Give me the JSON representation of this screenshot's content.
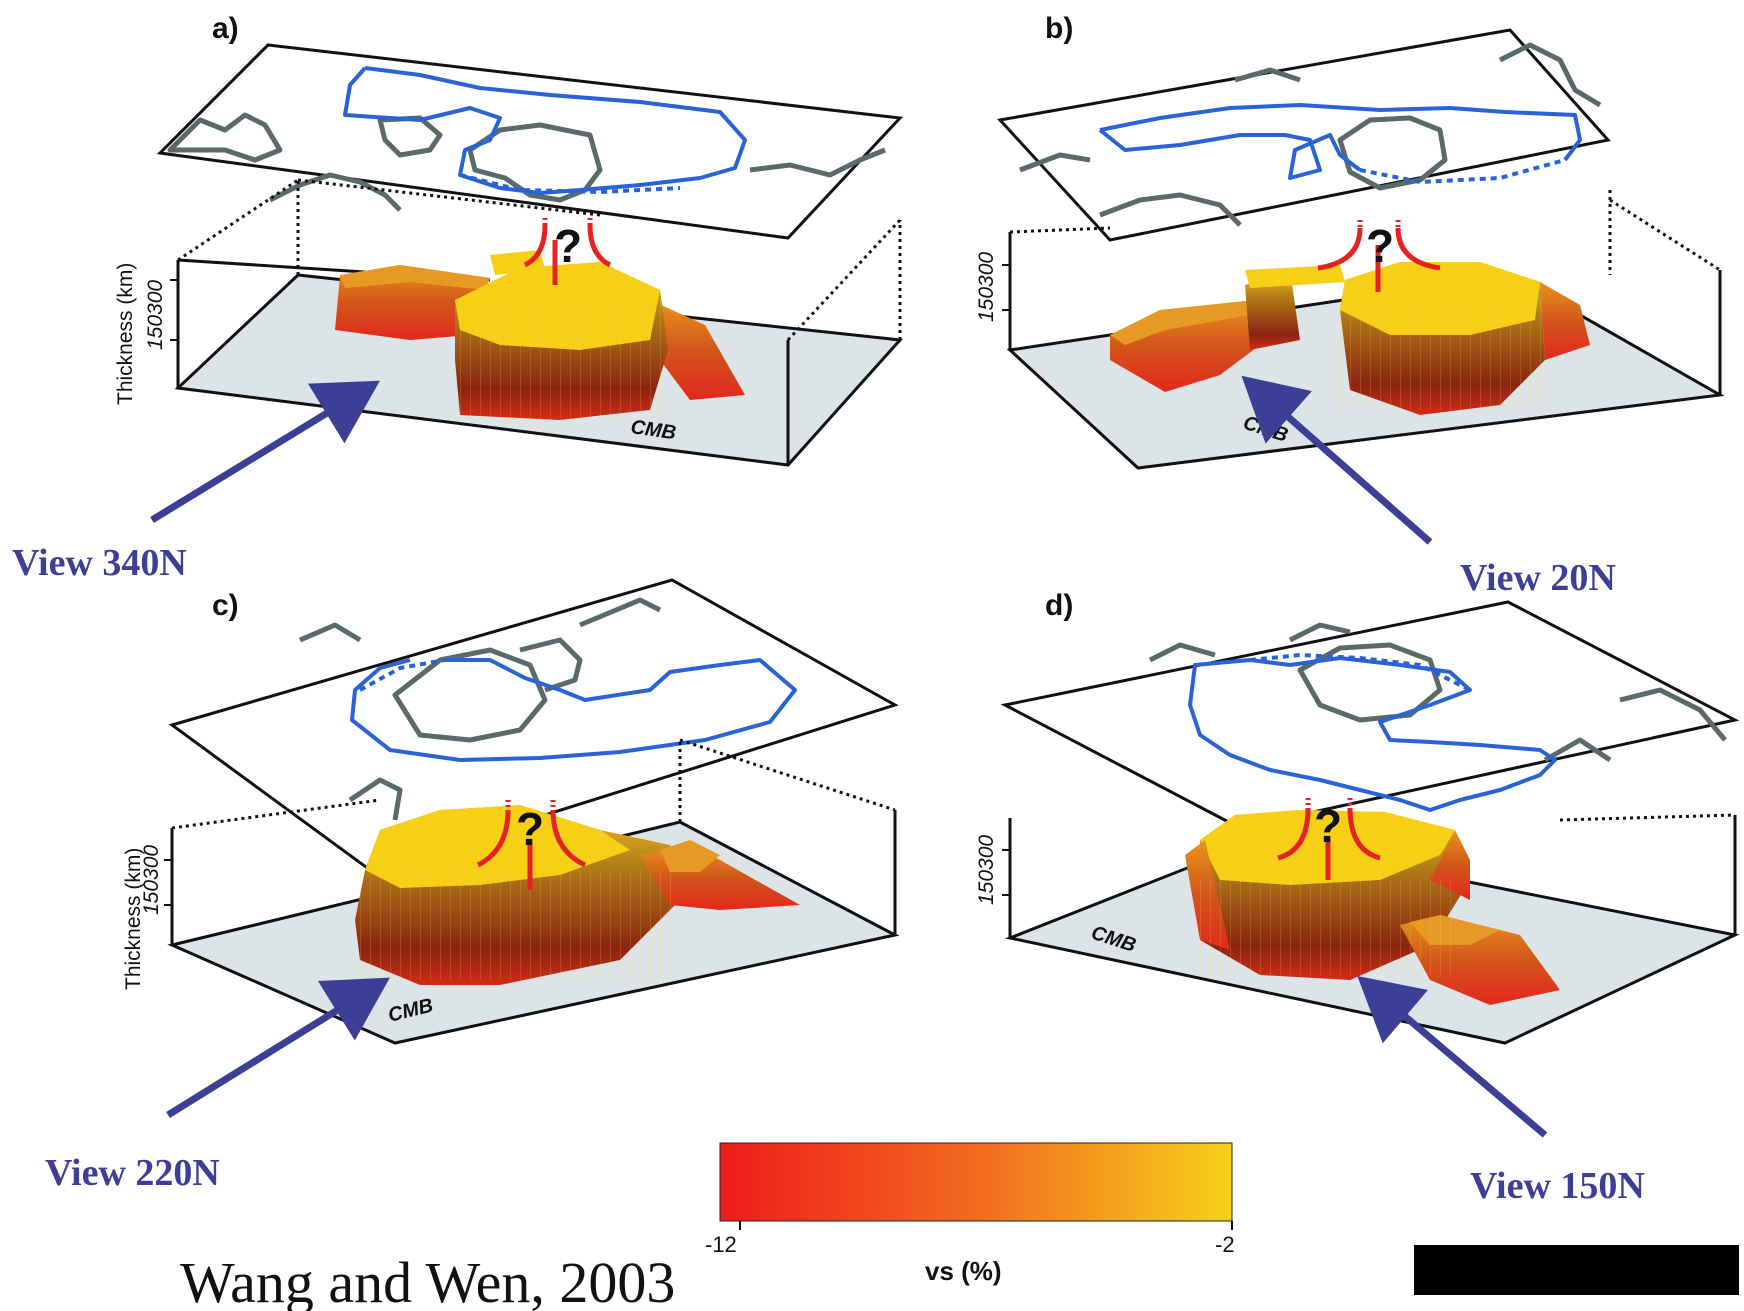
{
  "panels": [
    {
      "label": "a)",
      "view": "View 340N",
      "cmb": "CMB",
      "axis_label": "Thickness (km)",
      "ticks": "150300"
    },
    {
      "label": "b)",
      "view": "View 20N",
      "cmb": "CMB",
      "axis_label": "",
      "ticks": "150300"
    },
    {
      "label": "c)",
      "view": "View 220N",
      "cmb": "CMB",
      "axis_label": "Thickness (km)",
      "ticks": "150300"
    },
    {
      "label": "d)",
      "view": "View 150N",
      "cmb": "CMB",
      "axis_label": "",
      "ticks": "150300"
    }
  ],
  "question_mark": "?",
  "colorbar": {
    "title": "vs (%)",
    "min_label": "-12",
    "max_label": "-2",
    "colors": [
      "#ee1c1c",
      "#f26a1e",
      "#f5d21a"
    ]
  },
  "citation": "Wang and Wen, 2003",
  "colors": {
    "view_text": "#3b3f96",
    "arrow": "#3b3f96",
    "coastline": "#5a6a6a",
    "region_outline": "#2a62d8",
    "floor": "#dde4e8",
    "plume": "#e52222"
  }
}
